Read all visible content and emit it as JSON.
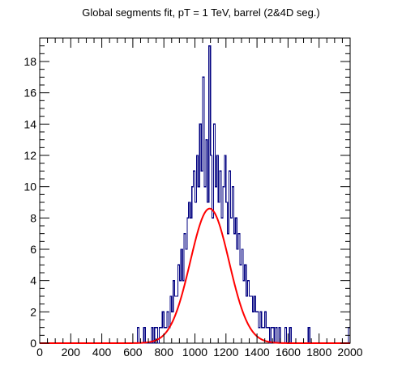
{
  "chart_data": {
    "type": "histogram",
    "title": "Global segments fit, pT = 1 TeV, barrel (2&4D seg.)",
    "xlabel": "",
    "ylabel": "",
    "xlim": [
      0,
      2000
    ],
    "ylim": [
      0,
      19.5
    ],
    "x_ticks": [
      0,
      200,
      400,
      600,
      800,
      1000,
      1200,
      1400,
      1600,
      1800,
      2000
    ],
    "y_ticks": [
      0,
      2,
      4,
      6,
      8,
      10,
      12,
      14,
      16,
      18
    ],
    "grid": false,
    "legend": "none",
    "bin_width": 10,
    "histogram": {
      "name": "",
      "color": "#000080",
      "bins": [
        [
          0,
          0
        ],
        [
          10,
          0
        ],
        [
          20,
          0
        ],
        [
          30,
          0
        ],
        [
          40,
          0
        ],
        [
          50,
          0
        ],
        [
          60,
          0
        ],
        [
          70,
          0
        ],
        [
          80,
          0
        ],
        [
          90,
          0
        ],
        [
          100,
          0
        ],
        [
          110,
          0
        ],
        [
          120,
          0
        ],
        [
          130,
          0
        ],
        [
          140,
          0
        ],
        [
          150,
          0
        ],
        [
          160,
          0
        ],
        [
          170,
          0
        ],
        [
          180,
          0
        ],
        [
          190,
          0
        ],
        [
          200,
          0
        ],
        [
          210,
          0
        ],
        [
          220,
          0
        ],
        [
          230,
          0
        ],
        [
          240,
          0
        ],
        [
          250,
          0
        ],
        [
          260,
          0
        ],
        [
          270,
          0
        ],
        [
          280,
          0
        ],
        [
          290,
          0
        ],
        [
          300,
          0
        ],
        [
          310,
          0
        ],
        [
          320,
          0
        ],
        [
          330,
          0
        ],
        [
          340,
          0
        ],
        [
          350,
          0
        ],
        [
          360,
          0
        ],
        [
          370,
          0
        ],
        [
          380,
          0
        ],
        [
          390,
          0
        ],
        [
          400,
          0
        ],
        [
          410,
          0
        ],
        [
          420,
          0
        ],
        [
          430,
          0
        ],
        [
          440,
          0
        ],
        [
          450,
          0
        ],
        [
          460,
          0
        ],
        [
          470,
          0
        ],
        [
          480,
          0
        ],
        [
          490,
          0
        ],
        [
          500,
          0
        ],
        [
          510,
          0
        ],
        [
          520,
          0
        ],
        [
          530,
          0
        ],
        [
          540,
          0
        ],
        [
          550,
          0
        ],
        [
          560,
          0
        ],
        [
          570,
          0
        ],
        [
          580,
          0
        ],
        [
          590,
          0
        ],
        [
          600,
          0
        ],
        [
          610,
          0
        ],
        [
          620,
          0
        ],
        [
          630,
          1
        ],
        [
          640,
          0
        ],
        [
          650,
          0
        ],
        [
          660,
          0
        ],
        [
          670,
          1
        ],
        [
          680,
          0
        ],
        [
          690,
          0
        ],
        [
          700,
          0
        ],
        [
          710,
          0
        ],
        [
          720,
          1
        ],
        [
          730,
          0
        ],
        [
          740,
          1
        ],
        [
          750,
          1
        ],
        [
          760,
          0
        ],
        [
          770,
          1
        ],
        [
          780,
          1
        ],
        [
          790,
          2
        ],
        [
          800,
          1
        ],
        [
          810,
          1
        ],
        [
          820,
          2
        ],
        [
          830,
          1
        ],
        [
          840,
          3
        ],
        [
          850,
          2
        ],
        [
          860,
          4
        ],
        [
          870,
          3
        ],
        [
          880,
          3
        ],
        [
          890,
          5
        ],
        [
          900,
          4
        ],
        [
          910,
          6
        ],
        [
          920,
          4
        ],
        [
          930,
          7
        ],
        [
          940,
          6
        ],
        [
          950,
          8
        ],
        [
          960,
          9
        ],
        [
          970,
          8
        ],
        [
          980,
          10
        ],
        [
          990,
          11
        ],
        [
          1000,
          9
        ],
        [
          1010,
          12
        ],
        [
          1020,
          10
        ],
        [
          1030,
          14
        ],
        [
          1040,
          11
        ],
        [
          1050,
          17
        ],
        [
          1060,
          10
        ],
        [
          1070,
          13
        ],
        [
          1080,
          9
        ],
        [
          1090,
          19
        ],
        [
          1100,
          12
        ],
        [
          1110,
          8
        ],
        [
          1120,
          14
        ],
        [
          1130,
          10
        ],
        [
          1140,
          12
        ],
        [
          1150,
          9
        ],
        [
          1160,
          11
        ],
        [
          1170,
          8
        ],
        [
          1180,
          10
        ],
        [
          1190,
          12
        ],
        [
          1200,
          9
        ],
        [
          1210,
          7
        ],
        [
          1220,
          11
        ],
        [
          1230,
          8
        ],
        [
          1240,
          10
        ],
        [
          1250,
          7
        ],
        [
          1260,
          8
        ],
        [
          1270,
          6
        ],
        [
          1280,
          7
        ],
        [
          1290,
          5
        ],
        [
          1300,
          6
        ],
        [
          1310,
          4
        ],
        [
          1320,
          5
        ],
        [
          1330,
          3
        ],
        [
          1340,
          4
        ],
        [
          1350,
          3
        ],
        [
          1360,
          3
        ],
        [
          1370,
          2
        ],
        [
          1380,
          3
        ],
        [
          1390,
          2
        ],
        [
          1400,
          2
        ],
        [
          1410,
          1
        ],
        [
          1420,
          2
        ],
        [
          1430,
          1
        ],
        [
          1440,
          1
        ],
        [
          1450,
          2
        ],
        [
          1460,
          1
        ],
        [
          1470,
          1
        ],
        [
          1480,
          0
        ],
        [
          1490,
          1
        ],
        [
          1500,
          1
        ],
        [
          1510,
          0
        ],
        [
          1520,
          1
        ],
        [
          1530,
          0
        ],
        [
          1540,
          1
        ],
        [
          1550,
          0
        ],
        [
          1560,
          0
        ],
        [
          1570,
          0
        ],
        [
          1580,
          1
        ],
        [
          1590,
          0
        ],
        [
          1600,
          0
        ],
        [
          1610,
          1
        ],
        [
          1620,
          0
        ],
        [
          1630,
          0
        ],
        [
          1640,
          0
        ],
        [
          1650,
          0
        ],
        [
          1660,
          0
        ],
        [
          1670,
          0
        ],
        [
          1680,
          0
        ],
        [
          1690,
          0
        ],
        [
          1700,
          0
        ],
        [
          1710,
          0
        ],
        [
          1720,
          0
        ],
        [
          1730,
          1
        ],
        [
          1740,
          0
        ],
        [
          1750,
          0
        ],
        [
          1760,
          0
        ],
        [
          1770,
          0
        ],
        [
          1780,
          0
        ],
        [
          1790,
          0
        ],
        [
          1800,
          0
        ],
        [
          1810,
          0
        ],
        [
          1820,
          0
        ],
        [
          1830,
          0
        ],
        [
          1840,
          0
        ],
        [
          1850,
          0
        ],
        [
          1860,
          0
        ],
        [
          1870,
          0
        ],
        [
          1880,
          0
        ],
        [
          1890,
          0
        ],
        [
          1900,
          0
        ],
        [
          1910,
          0
        ],
        [
          1920,
          0
        ],
        [
          1930,
          0
        ],
        [
          1940,
          0
        ],
        [
          1950,
          0
        ],
        [
          1960,
          0
        ],
        [
          1970,
          0
        ],
        [
          1980,
          0
        ],
        [
          1990,
          1
        ]
      ]
    },
    "fit": {
      "name": "",
      "type": "gaussian",
      "color": "#ff0000",
      "amplitude": 8.6,
      "mean": 1095,
      "sigma": 125,
      "x_range": [
        0,
        2000
      ]
    }
  }
}
